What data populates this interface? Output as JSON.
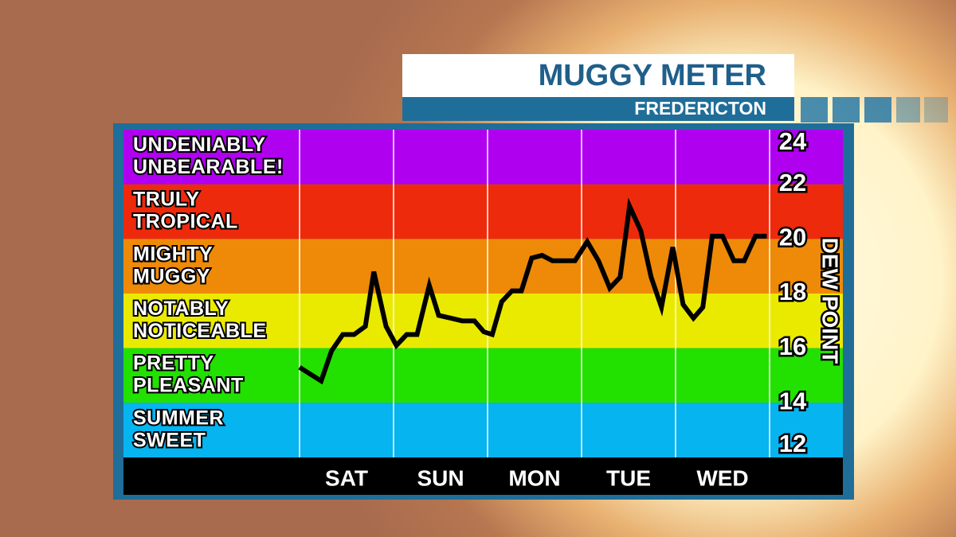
{
  "chart_data": {
    "type": "line",
    "title": "MUGGY METER",
    "subtitle": "FREDERICTON",
    "y_label": "DEW POINT",
    "ylim": [
      12,
      24
    ],
    "yticks": [
      12,
      14,
      16,
      18,
      20,
      22,
      24
    ],
    "xlim": [
      0,
      5
    ],
    "xticks": [
      0,
      1,
      2,
      3,
      4,
      5
    ],
    "categories": [
      "SAT",
      "SUN",
      "MON",
      "TUE",
      "WED"
    ],
    "bands": [
      {
        "lines": [
          "UNDENIABLY",
          "UNBEARABLE!"
        ],
        "range": [
          22,
          24
        ],
        "color": "#b000f0"
      },
      {
        "lines": [
          "TRULY",
          "TROPICAL"
        ],
        "range": [
          20,
          22
        ],
        "color": "#ee2a0c"
      },
      {
        "lines": [
          "MIGHTY",
          "MUGGY"
        ],
        "range": [
          18,
          20
        ],
        "color": "#ee8a08"
      },
      {
        "lines": [
          "NOTABLY",
          "NOTICEABLE"
        ],
        "range": [
          16,
          18
        ],
        "color": "#eaea00"
      },
      {
        "lines": [
          "PRETTY",
          "PLEASANT"
        ],
        "range": [
          14,
          16
        ],
        "color": "#22e000"
      },
      {
        "lines": [
          "SUMMER",
          "SWEET"
        ],
        "range": [
          12,
          14
        ],
        "color": "#06b4f0"
      }
    ],
    "series": [
      {
        "color": "#000000",
        "x": [
          0,
          0.23,
          0.34,
          0.46,
          0.58,
          0.7,
          0.79,
          0.92,
          1.03,
          1.14,
          1.25,
          1.38,
          1.48,
          1.61,
          1.73,
          1.86,
          1.96,
          2.05,
          2.15,
          2.26,
          2.36,
          2.47,
          2.58,
          2.69,
          2.81,
          2.93,
          3.06,
          3.18,
          3.3,
          3.41,
          3.51,
          3.63,
          3.74,
          3.85,
          3.97,
          4.08,
          4.19,
          4.29,
          4.39,
          4.5,
          4.62,
          4.73,
          4.85,
          4.97
        ],
        "values": [
          15.3,
          14.8,
          15.9,
          16.5,
          16.5,
          16.8,
          18.8,
          16.8,
          16.1,
          16.5,
          16.5,
          18.3,
          17.2,
          17.1,
          17.0,
          17.0,
          16.6,
          16.5,
          17.7,
          18.1,
          18.1,
          19.3,
          19.4,
          19.2,
          19.2,
          19.2,
          19.9,
          19.2,
          18.2,
          18.6,
          21.2,
          20.3,
          18.6,
          17.5,
          19.7,
          17.6,
          17.1,
          17.5,
          20.1,
          20.1,
          19.2,
          19.2,
          20.1,
          20.1
        ]
      }
    ]
  }
}
